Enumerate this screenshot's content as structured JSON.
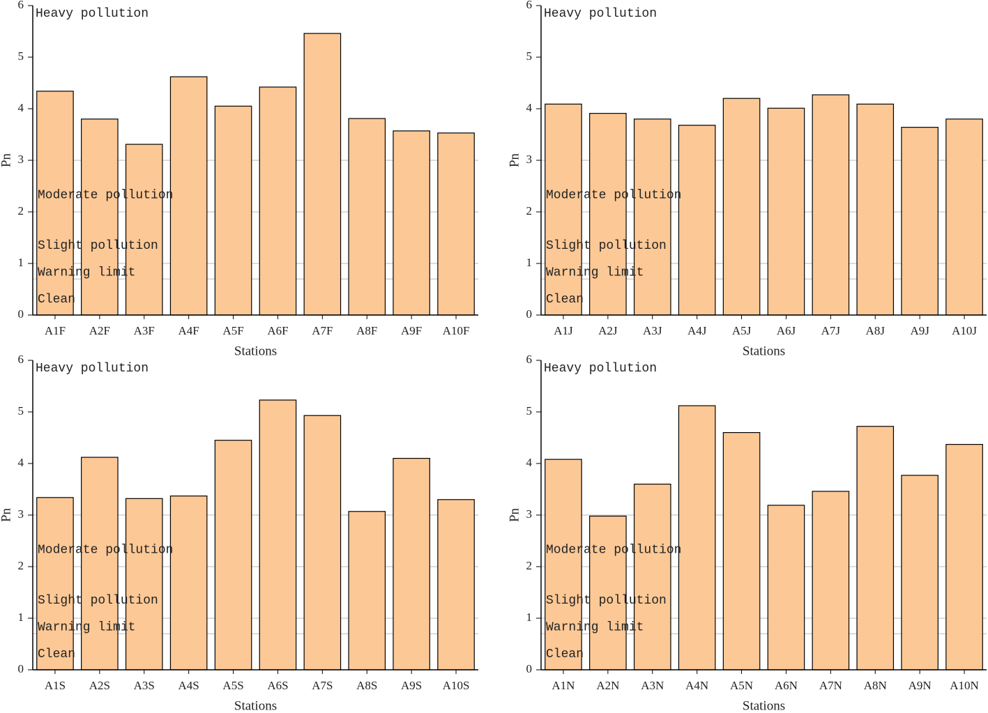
{
  "chart_data": [
    {
      "type": "bar",
      "xlabel": "Stations",
      "ylabel": "Pn",
      "categories": [
        "A1F",
        "A2F",
        "A3F",
        "A4F",
        "A5F",
        "A6F",
        "A7F",
        "A8F",
        "A9F",
        "A10F"
      ],
      "values": [
        4.34,
        3.8,
        3.31,
        4.62,
        4.05,
        4.42,
        5.46,
        3.81,
        3.57,
        3.53
      ],
      "color": "#fcc895",
      "ylim": [
        0,
        6
      ],
      "yticks": [
        0,
        1,
        2,
        3,
        4,
        5,
        6
      ],
      "reference_lines": [
        0.7,
        1,
        2,
        3
      ],
      "annotations": [
        "Heavy pollution",
        "Moderate pollution",
        "Slight pollution",
        "Warning limit",
        "Clean"
      ]
    },
    {
      "type": "bar",
      "xlabel": "Stations",
      "ylabel": "Pn",
      "categories": [
        "A1J",
        "A2J",
        "A3J",
        "A4J",
        "A5J",
        "A6J",
        "A7J",
        "A8J",
        "A9J",
        "A10J"
      ],
      "values": [
        4.09,
        3.91,
        3.8,
        3.68,
        4.2,
        4.01,
        4.27,
        4.09,
        3.64,
        3.8
      ],
      "color": "#fcc895",
      "ylim": [
        0,
        6
      ],
      "yticks": [
        0,
        1,
        2,
        3,
        4,
        5,
        6
      ],
      "reference_lines": [
        0.7,
        1,
        2,
        3
      ],
      "annotations": [
        "Heavy pollution",
        "Moderate pollution",
        "Slight pollution",
        "Warning limit",
        "Clean"
      ]
    },
    {
      "type": "bar",
      "xlabel": "Stations",
      "ylabel": "Pn",
      "categories": [
        "A1S",
        "A2S",
        "A3S",
        "A4S",
        "A5S",
        "A6S",
        "A7S",
        "A8S",
        "A9S",
        "A10S"
      ],
      "values": [
        3.34,
        4.12,
        3.32,
        3.37,
        4.45,
        5.23,
        4.93,
        3.07,
        4.1,
        3.3
      ],
      "color": "#fcc895",
      "ylim": [
        0,
        6
      ],
      "yticks": [
        0,
        1,
        2,
        3,
        4,
        5,
        6
      ],
      "reference_lines": [
        0.7,
        1,
        2,
        3
      ],
      "annotations": [
        "Heavy pollution",
        "Moderate pollution",
        "Slight pollution",
        "Warning limit",
        "Clean"
      ]
    },
    {
      "type": "bar",
      "xlabel": "Stations",
      "ylabel": "Pn",
      "categories": [
        "A1N",
        "A2N",
        "A3N",
        "A4N",
        "A5N",
        "A6N",
        "A7N",
        "A8N",
        "A9N",
        "A10N"
      ],
      "values": [
        4.08,
        2.98,
        3.6,
        5.12,
        4.6,
        3.19,
        3.46,
        4.72,
        3.77,
        4.37
      ],
      "color": "#fcc895",
      "ylim": [
        0,
        6
      ],
      "yticks": [
        0,
        1,
        2,
        3,
        4,
        5,
        6
      ],
      "reference_lines": [
        0.7,
        1,
        2,
        3
      ],
      "annotations": [
        "Heavy pollution",
        "Moderate pollution",
        "Slight pollution",
        "Warning limit",
        "Clean"
      ]
    }
  ]
}
